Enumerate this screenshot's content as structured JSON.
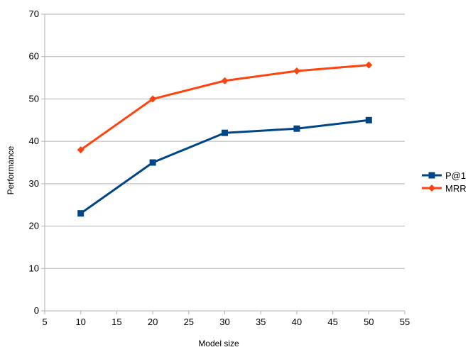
{
  "chart_data": {
    "type": "line",
    "title": "",
    "xlabel": "Model size",
    "ylabel": "Performance",
    "xlim": [
      5,
      55
    ],
    "ylim": [
      0,
      70
    ],
    "xticks": [
      5,
      10,
      15,
      20,
      25,
      30,
      35,
      40,
      45,
      50,
      55
    ],
    "yticks": [
      0,
      10,
      20,
      30,
      40,
      50,
      60,
      70
    ],
    "grid": "horizontal",
    "legend_position": "right",
    "series": [
      {
        "name": "P@1",
        "color": "#004586",
        "marker": "square",
        "x": [
          10,
          20,
          30,
          40,
          50
        ],
        "y": [
          23,
          35,
          42,
          43,
          45
        ]
      },
      {
        "name": "MRR",
        "color": "#ff420e",
        "marker": "diamond",
        "x": [
          10,
          20,
          30,
          40,
          50
        ],
        "y": [
          38,
          50,
          54.3,
          56.6,
          58
        ]
      }
    ]
  }
}
